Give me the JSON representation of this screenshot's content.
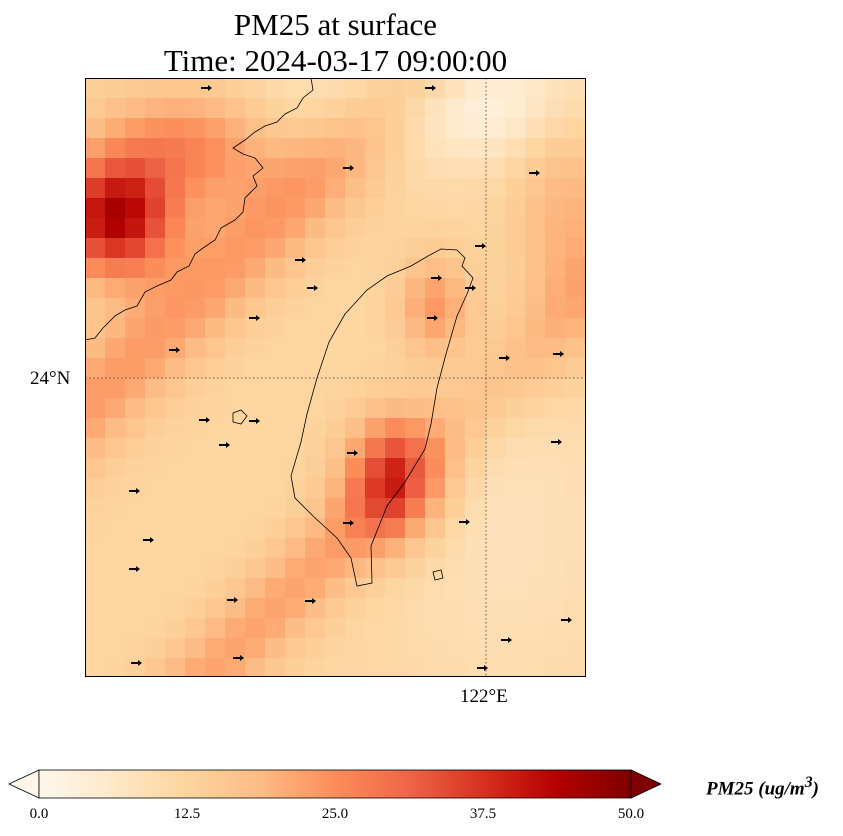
{
  "title": {
    "line1": "PM25 at surface",
    "line2": "Time: 2024-03-17 09:00:00"
  },
  "map": {
    "gridlines": {
      "latitude": "24°N",
      "longitude": "122°E"
    },
    "colormap": "OrRd",
    "colors": {
      "low": "#fff7ec",
      "mid": "#fdd49e",
      "high": "#ef6548",
      "max": "#7f0000",
      "coastline": "#000000"
    }
  },
  "colorbar": {
    "label_prefix": "PM25 (ug/m",
    "label_power": "3",
    "label_suffix": ")",
    "ticks": [
      "0.0",
      "12.5",
      "25.0",
      "37.5",
      "50.0"
    ],
    "range": [
      0,
      50
    ],
    "extend": "both"
  }
}
